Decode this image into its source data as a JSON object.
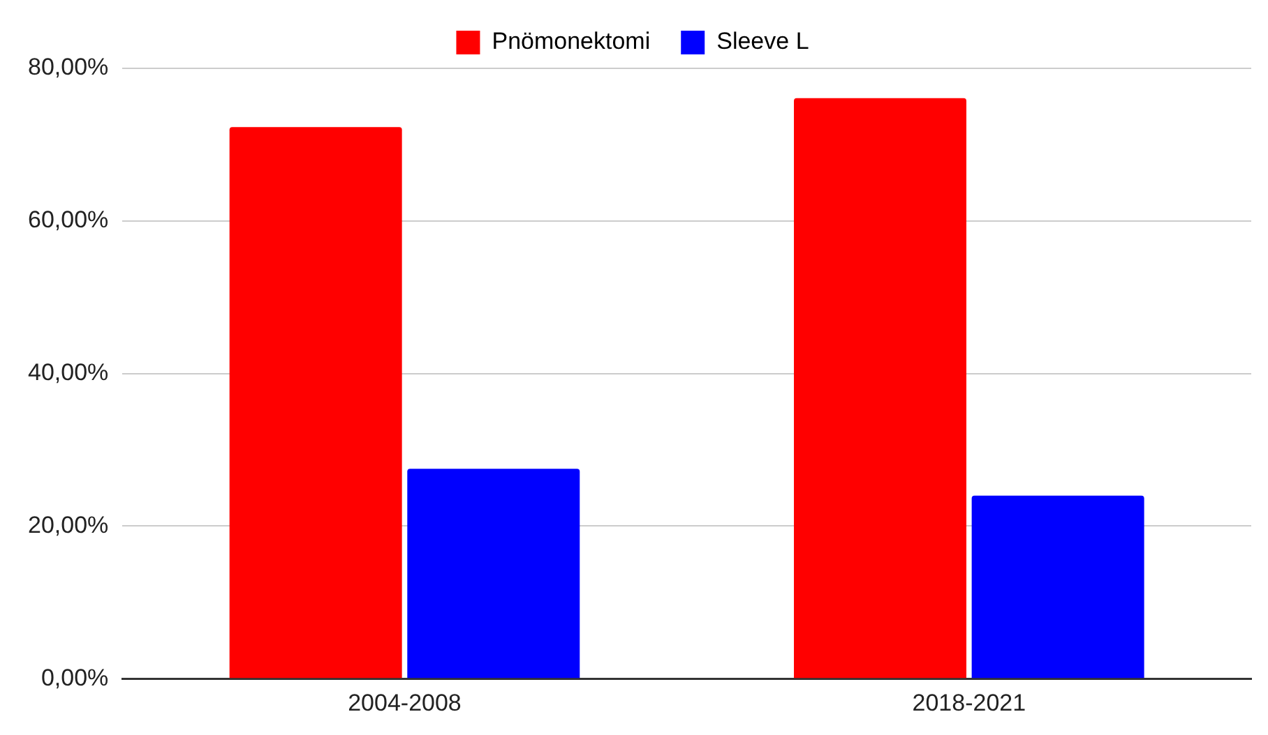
{
  "chart_data": {
    "type": "bar",
    "categories": [
      "2004-2008",
      "2018-2021"
    ],
    "series": [
      {
        "name": "Pnömonektomi",
        "color": "#ff0000",
        "values": [
          72.3,
          76.1
        ]
      },
      {
        "name": "Sleeve L",
        "color": "#0000ff",
        "values": [
          27.5,
          24.0
        ]
      }
    ],
    "ylim": [
      0,
      80
    ],
    "yticks": [
      {
        "value": 0,
        "label": "0,00%"
      },
      {
        "value": 20,
        "label": "20,00%"
      },
      {
        "value": 40,
        "label": "40,00%"
      },
      {
        "value": 60,
        "label": "60,00%"
      },
      {
        "value": 80,
        "label": "80,00%"
      }
    ],
    "grid": "y",
    "legend": "top"
  }
}
